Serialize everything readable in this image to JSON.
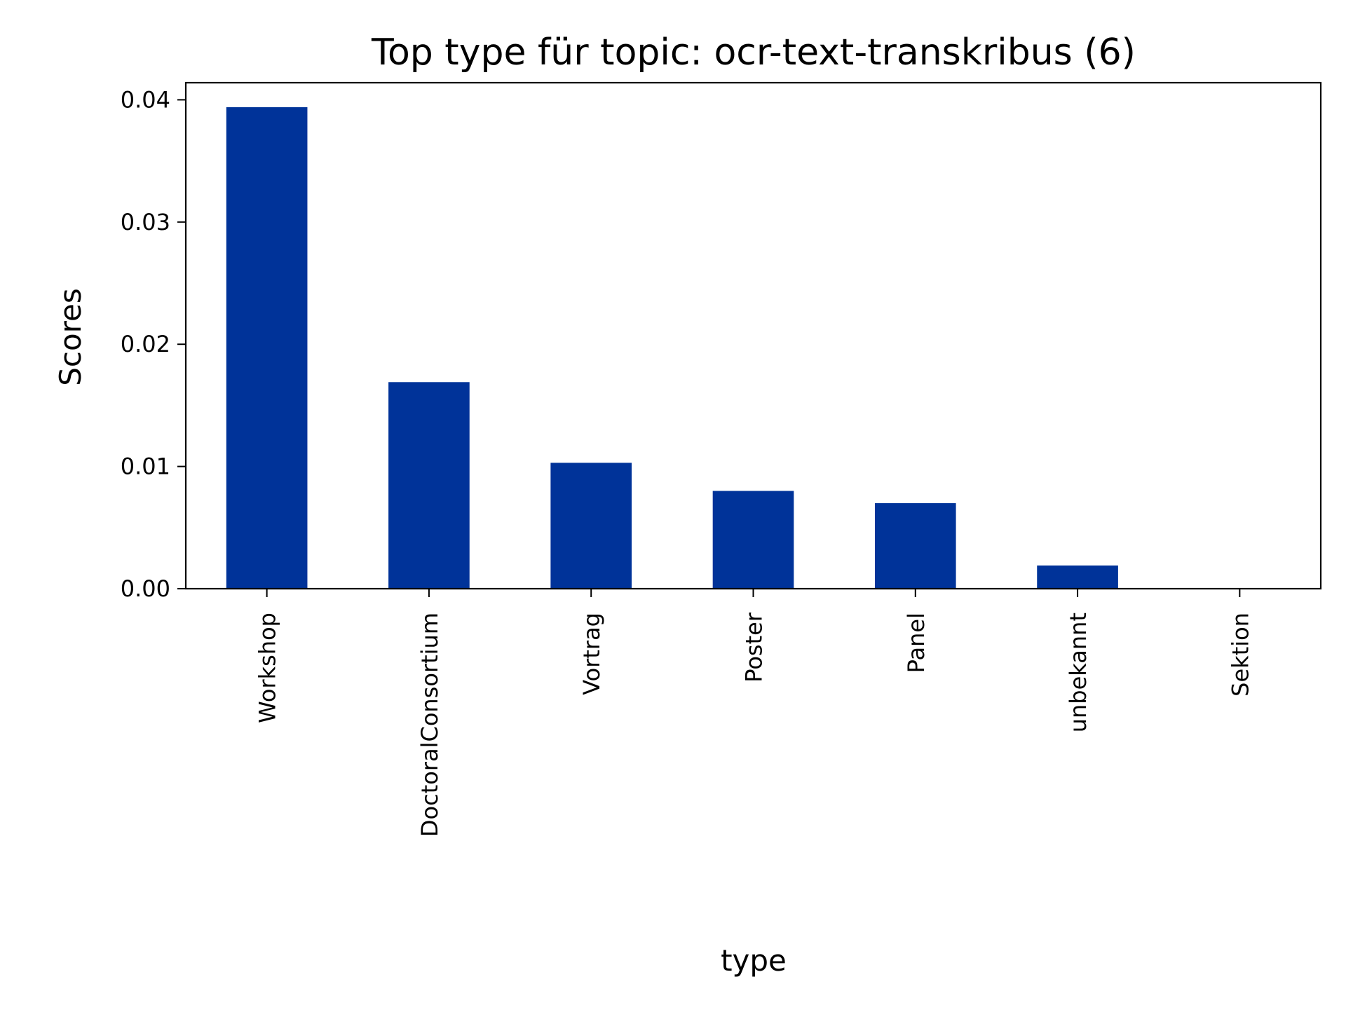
{
  "chart_data": {
    "type": "bar",
    "title": "Top type für topic: ocr-text-transkribus (6)",
    "xlabel": "type",
    "ylabel": "Scores",
    "categories": [
      "Workshop",
      "DoctoralConsortium",
      "Vortrag",
      "Poster",
      "Panel",
      "unbekannt",
      "Sektion"
    ],
    "values": [
      0.0394,
      0.0169,
      0.0103,
      0.008,
      0.007,
      0.0019,
      0.0
    ],
    "ylim": [
      0,
      0.0414
    ],
    "yticks": [
      0.0,
      0.01,
      0.02,
      0.03,
      0.04
    ],
    "ytick_labels": [
      "0.00",
      "0.01",
      "0.02",
      "0.03",
      "0.04"
    ],
    "bar_color": "#003399",
    "grid": false,
    "legend": "none"
  }
}
